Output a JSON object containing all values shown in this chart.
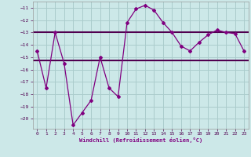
{
  "x": [
    0,
    1,
    2,
    3,
    4,
    5,
    6,
    7,
    8,
    9,
    10,
    11,
    12,
    13,
    14,
    15,
    16,
    17,
    18,
    19,
    20,
    21,
    22,
    23
  ],
  "y_line": [
    -14.5,
    -17.5,
    -13.0,
    -15.5,
    -20.5,
    -19.5,
    -18.5,
    -15.0,
    -17.5,
    -18.2,
    -12.2,
    -11.1,
    -10.8,
    -11.2,
    -12.2,
    -13.0,
    -14.1,
    -14.5,
    -13.8,
    -13.2,
    -12.8,
    -13.0,
    -13.1,
    -14.5
  ],
  "y_avg1": -13.0,
  "y_avg2": -15.3,
  "line_color": "#800080",
  "avg_color": "#500050",
  "bg_color": "#cce8e8",
  "grid_color": "#aacccc",
  "xlabel": "Windchill (Refroidissement éolien,°C)",
  "xlim": [
    -0.5,
    23.5
  ],
  "ylim": [
    -20.8,
    -10.5
  ],
  "yticks": [
    -20,
    -19,
    -18,
    -17,
    -16,
    -15,
    -14,
    -13,
    -12,
    -11
  ],
  "xticks": [
    0,
    1,
    2,
    3,
    4,
    5,
    6,
    7,
    8,
    9,
    10,
    11,
    12,
    13,
    14,
    15,
    16,
    17,
    18,
    19,
    20,
    21,
    22,
    23
  ]
}
